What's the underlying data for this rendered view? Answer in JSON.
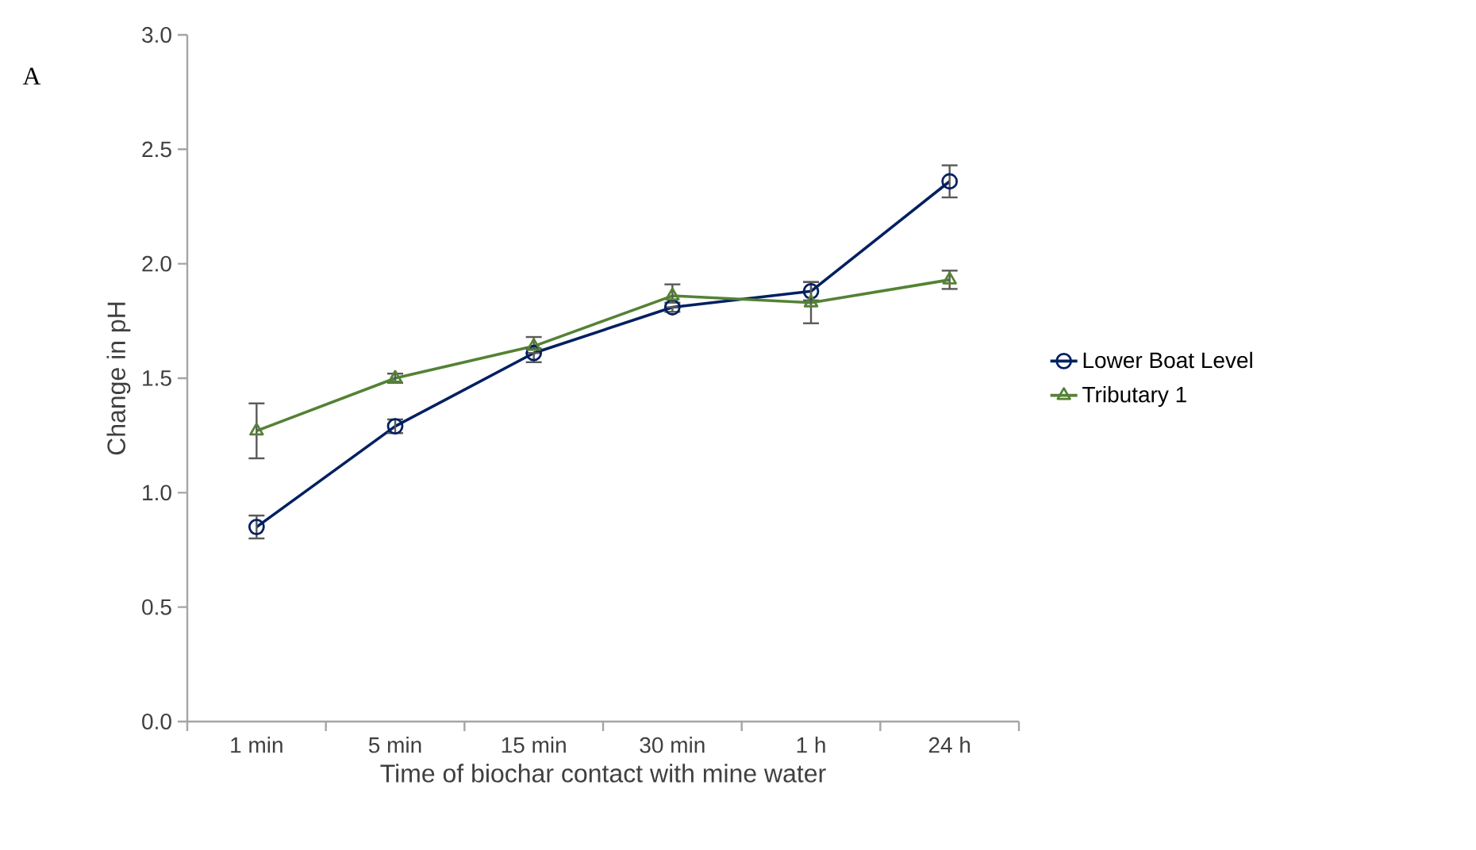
{
  "chart_data": {
    "type": "line",
    "xlabel": "Time of biochar contact with mine water",
    "ylabel": "Change in pH",
    "annotations": [
      "A"
    ],
    "categories": [
      "1 min",
      "5 min",
      "15 min",
      "30 min",
      "1 h",
      "24 h"
    ],
    "series": [
      {
        "name": "Lower Boat Level",
        "color": "#002060",
        "marker": "circle",
        "values": [
          0.85,
          1.29,
          1.61,
          1.81,
          1.88,
          2.36
        ],
        "errors": [
          0.05,
          0.03,
          [
            1.57,
            1.61
          ],
          [
            1.79,
            1.81
          ],
          0.04,
          0.07
        ]
      },
      {
        "name": "Tributary 1",
        "color": "#548235",
        "marker": "triangle",
        "values": [
          1.27,
          1.5,
          1.64,
          1.86,
          1.83,
          1.93
        ],
        "errors": [
          0.12,
          0.02,
          [
            1.63,
            1.68
          ],
          [
            1.83,
            1.91
          ],
          0.09,
          0.04
        ]
      }
    ],
    "ylim": [
      0,
      3
    ],
    "yticks": [
      {
        "value": 0,
        "label": "0.0"
      },
      {
        "value": 0.5,
        "label": "0.5"
      },
      {
        "value": 1,
        "label": "1.0"
      },
      {
        "value": 1.5,
        "label": "1.5"
      },
      {
        "value": 2,
        "label": "2.0"
      },
      {
        "value": 2.5,
        "label": "2.5"
      },
      {
        "value": 3,
        "label": "3.0"
      }
    ],
    "legend": "right",
    "line_style": "solid"
  }
}
